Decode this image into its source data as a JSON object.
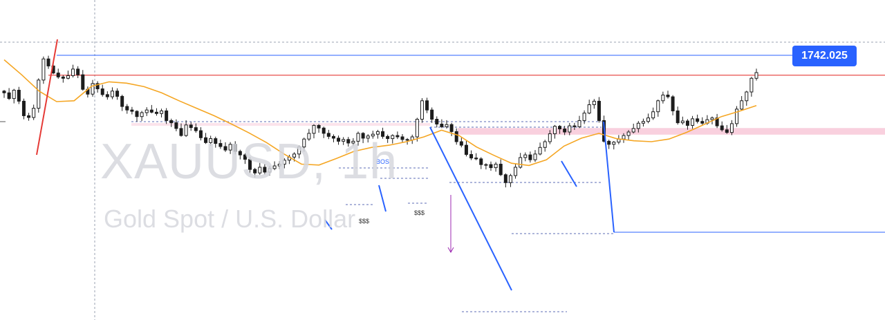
{
  "watermark": {
    "symbol": "XAUUSD, 1h",
    "description": "Gold Spot / U.S. Dollar"
  },
  "price_badge": {
    "value": "1742.025",
    "color": "#2962ff"
  },
  "colors": {
    "candle": "#1c1c1c",
    "moving_average": "#f5a623",
    "resistance_line": "#e53935",
    "price_line": "#2962ff",
    "zone": "#f8c8d8",
    "impulse_up": "#e53935",
    "impulse_down": "#2962ff",
    "measure_arrow": "#9c27b0"
  },
  "annotations": {
    "bos": "BOS",
    "sss1": "$$$",
    "sss2": "$$$"
  },
  "chart_data": {
    "type": "candlestick",
    "symbol": "XAUUSD",
    "timeframe": "1h",
    "close_values": [
      1733.5,
      1732.2,
      1734.1,
      1731.6,
      1728.3,
      1727.9,
      1730.0,
      1736.4,
      1741.2,
      1739.6,
      1738.0,
      1737.1,
      1736.8,
      1737.4,
      1738.9,
      1737.6,
      1734.3,
      1733.2,
      1735.6,
      1734.4,
      1733.1,
      1732.6,
      1733.9,
      1732.7,
      1730.4,
      1729.6,
      1729.3,
      1728.1,
      1729.0,
      1729.6,
      1729.1,
      1728.8,
      1729.4,
      1727.2,
      1726.7,
      1725.4,
      1723.8,
      1726.2,
      1725.6,
      1724.9,
      1723.3,
      1722.2,
      1723.1,
      1722.0,
      1721.3,
      1720.5,
      1721.8,
      1720.2,
      1719.4,
      1718.4,
      1716.1,
      1715.3,
      1716.6,
      1715.5,
      1716.3,
      1716.9,
      1717.3,
      1718.2,
      1718.9,
      1719.6,
      1721.2,
      1723.0,
      1724.3,
      1726.1,
      1725.5,
      1724.3,
      1723.6,
      1723.2,
      1722.5,
      1722.9,
      1722.1,
      1722.5,
      1724.3,
      1723.2,
      1723.7,
      1724.1,
      1724.7,
      1723.6,
      1723.1,
      1723.8,
      1723.5,
      1722.9,
      1722.8,
      1723.5,
      1727.5,
      1731.7,
      1729.6,
      1727.5,
      1726.4,
      1725.8,
      1726.3,
      1724.7,
      1722.4,
      1721.6,
      1719.5,
      1718.7,
      1718.5,
      1717.2,
      1717.2,
      1716.5,
      1717.3,
      1714.9,
      1713.1,
      1714.7,
      1716.6,
      1718.8,
      1719.4,
      1718.3,
      1719.6,
      1721.1,
      1722.4,
      1724.2,
      1725.9,
      1725.3,
      1724.6,
      1726.0,
      1725.8,
      1727.2,
      1728.9,
      1730.8,
      1731.6,
      1727.2,
      1722.5,
      1721.8,
      1722.3,
      1723.0,
      1723.8,
      1724.6,
      1725.4,
      1726.6,
      1727.0,
      1727.8,
      1729.2,
      1731.7,
      1733.0,
      1732.6,
      1729.4,
      1726.7,
      1727.1,
      1726.1,
      1727.6,
      1727.0,
      1726.6,
      1727.4,
      1727.8,
      1726.0,
      1725.1,
      1724.5,
      1726.5,
      1729.8,
      1731.7,
      1733.7,
      1736.8,
      1738.1
    ],
    "moving_average": {
      "values": [
        1741.0,
        1737.6,
        1733.9,
        1731.5,
        1731.7,
        1735.0,
        1736.0,
        1735.7,
        1734.9,
        1733.5,
        1731.7,
        1730.0,
        1728.3,
        1726.4,
        1724.4,
        1722.2,
        1719.6,
        1717.3,
        1717.1,
        1718.6,
        1720.2,
        1721.1,
        1721.6,
        1722.4,
        1723.5,
        1725.0,
        1723.8,
        1721.2,
        1719.3,
        1717.5,
        1717.0,
        1718.3,
        1721.4,
        1723.2,
        1724.3,
        1723.1,
        1722.6,
        1722.4,
        1723.0,
        1724.5,
        1726.3,
        1728.1,
        1729.3,
        1730.6
      ]
    },
    "horizontal_levels": {
      "price_line": 1742.025,
      "resistance": 1737.5
    },
    "zone": {
      "type": "demand",
      "low": 1724.0,
      "high": 1725.5
    },
    "labels": [
      "BOS",
      "$$$",
      "$$$"
    ],
    "price_badge": 1742.025
  }
}
